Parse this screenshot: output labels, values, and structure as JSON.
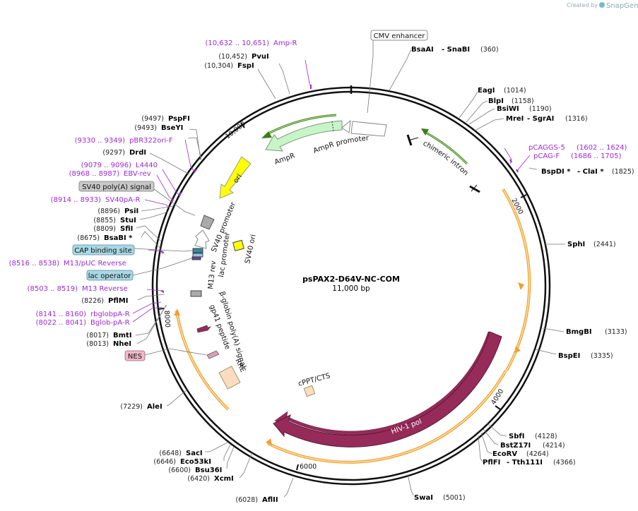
{
  "watermark": {
    "created_by": "Created by",
    "brand": "SnapGene"
  },
  "plasmid": {
    "name": "psPAX2-D64V-NC-COM",
    "size": "11,000 bp"
  },
  "ticks": {
    "t2000": "2000",
    "t4000": "4000",
    "t6000": "6000",
    "t8000": "8000",
    "t10000": "10,000"
  },
  "enzymes": {
    "pvui": {
      "pos": "(10,452)",
      "name": "PvuI"
    },
    "fspi": {
      "pos": "(10,304)",
      "name": "FspI"
    },
    "bsaai": {
      "name": "BsaAI",
      "sep": "- SnaBI",
      "pos": "(360)"
    },
    "eagi": {
      "name": "EagI",
      "pos": "(1014)"
    },
    "blpi": {
      "name": "BlpI",
      "pos": "(1158)"
    },
    "bsiwi": {
      "name": "BsiWI",
      "pos": "(1190)"
    },
    "mrei": {
      "name": "MreI",
      "sep": "- SgrAI",
      "pos": "(1316)"
    },
    "bspdi": {
      "name": "BspDI *",
      "sep": "- ClaI *",
      "pos": "(1825)"
    },
    "sphi": {
      "name": "SphI",
      "pos": "(2441)"
    },
    "bmgbi": {
      "name": "BmgBI",
      "pos": "(3133)"
    },
    "bspei": {
      "name": "BspEI",
      "pos": "(3335)"
    },
    "sbfi": {
      "name": "SbfI",
      "pos": "(4128)"
    },
    "bstz17i": {
      "name": "BstZ17I",
      "pos": "(4214)"
    },
    "ecorv": {
      "name": "EcoRV",
      "pos": "(4264)"
    },
    "pflfi": {
      "name": "PflFI",
      "sep": "- Tth111I",
      "pos": "(4366)"
    },
    "swai": {
      "name": "SwaI",
      "pos": "(5001)"
    },
    "aflii": {
      "pos": "(6028)",
      "name": "AflII"
    },
    "xcmi": {
      "pos": "(6420)",
      "name": "XcmI"
    },
    "bsu36i": {
      "pos": "(6600)",
      "name": "Bsu36I"
    },
    "eco53ki": {
      "pos": "(6646)",
      "name": "Eco53kI"
    },
    "saci": {
      "pos": "(6648)",
      "name": "SacI"
    },
    "alei": {
      "pos": "(7229)",
      "name": "AleI"
    },
    "nhei": {
      "pos": "(8013)",
      "name": "NheI"
    },
    "bmti": {
      "pos": "(8017)",
      "name": "BmtI"
    },
    "pflmi": {
      "pos": "(8226)",
      "name": "PflMI"
    },
    "bsabi": {
      "pos": "(8675)",
      "name": "BsaBI *"
    },
    "sfii": {
      "pos": "(8809)",
      "name": "SfiI"
    },
    "stui": {
      "pos": "(8855)",
      "name": "StuI"
    },
    "psii": {
      "pos": "(8896)",
      "name": "PsiI"
    },
    "drdi": {
      "pos": "(9297)",
      "name": "DrdI"
    },
    "bseyi": {
      "pos": "(9493)",
      "name": "BseYI"
    },
    "pspfi": {
      "pos": "(9497)",
      "name": "PspFI"
    }
  },
  "primers": {
    "ampr_p": {
      "pos": "(10,632 .. 10,651)",
      "name": "Amp-R"
    },
    "pbr322": {
      "pos": "(9330 .. 9349)",
      "name": "pBR322ori-F"
    },
    "l4440": {
      "pos": "(9079 .. 9096)",
      "name": "L4440"
    },
    "ebv": {
      "pos": "(8968 .. 8987)",
      "name": "EBV-rev"
    },
    "sv40pa": {
      "pos": "(8914 .. 8933)",
      "name": "SV40pA-R"
    },
    "m13puc": {
      "pos": "(8516 .. 8538)",
      "name": "M13/pUC Reverse"
    },
    "m13rev": {
      "pos": "(8503 .. 8519)",
      "name": "M13 Reverse"
    },
    "rbglob": {
      "pos": "(8141 .. 8160)",
      "name": "rbglobpA-R"
    },
    "bglob": {
      "pos": "(8022 .. 8041)",
      "name": "Bglob-pA-R"
    },
    "pcaggs": {
      "name": "pCAGGS-5",
      "pos": "(1602 .. 1624)"
    },
    "pcag": {
      "name": "pCAG-F",
      "pos": "(1686 .. 1705)"
    }
  },
  "boxed_labels": {
    "cmv": "CMV enhancer",
    "sv40polya": "SV40 poly(A) signal",
    "cap": "CAP binding site",
    "lacop": "lac operator",
    "nes": "NES"
  },
  "features": {
    "ampr_promoter": "AmpR promoter",
    "ampr": "AmpR",
    "ori": "ori",
    "chimeric_intron": "chimeric intron",
    "sv40_promoter": "SV40 promoter",
    "sv40_ori": "SV40 ori",
    "lac_promoter": "lac promoter",
    "m13_rev": "M13 rev",
    "bglobin": "β-globin poly(A) signal",
    "gp41": "gp41 peptide",
    "rre": "RRE",
    "cppt": "cPPT/CTS",
    "hiv1pol": "HIV-1 pol"
  },
  "colors": {
    "backbone": "#111111",
    "primer": "#9a2bd0",
    "orange": "#f0a030",
    "green": "#4aa020",
    "hiv": "#962b5a",
    "ori": "#ffff00"
  }
}
